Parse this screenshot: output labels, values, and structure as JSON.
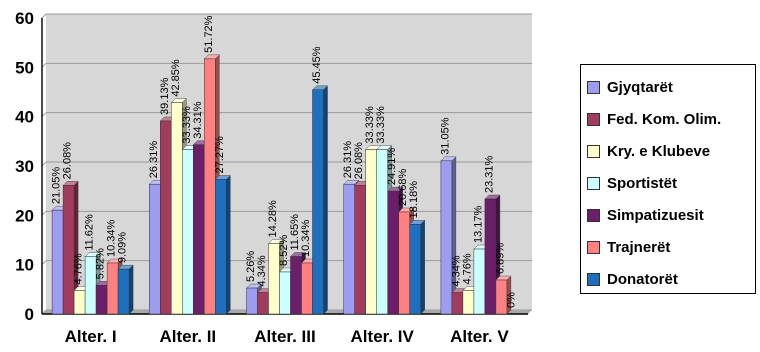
{
  "chart_data": {
    "type": "bar",
    "categories": [
      "Alter. I",
      "Alter. II",
      "Alter. III",
      "Alter. IV",
      "Alter. V"
    ],
    "ylim": [
      0,
      60
    ],
    "yticks": [
      0,
      10,
      20,
      30,
      40,
      50,
      60
    ],
    "grid": true,
    "legend_position": "right",
    "series": [
      {
        "name": "Gjyqtarët",
        "color": "#9c9cf0",
        "values": [
          21.05,
          26.31,
          5.26,
          26.31,
          31.05
        ],
        "labels": [
          "21.05%",
          "26.31%",
          "5.26%",
          "26.31%",
          "31.05%"
        ]
      },
      {
        "name": "Fed. Kom. Olim.",
        "color": "#a23c5e",
        "values": [
          26.08,
          39.13,
          4.34,
          26.08,
          4.34
        ],
        "labels": [
          "26.08%",
          "39.13%",
          "4.34%",
          "26.08%",
          "4.34%"
        ]
      },
      {
        "name": "Kry. e Klubeve",
        "color": "#ffffcc",
        "values": [
          4.76,
          42.85,
          14.28,
          33.33,
          4.76
        ],
        "labels": [
          "4.76%",
          "42.85%",
          "14.28%",
          "33.33%",
          "4.76%"
        ]
      },
      {
        "name": "Sportistët",
        "color": "#ccffff",
        "values": [
          11.62,
          33.33,
          8.52,
          33.33,
          13.17
        ],
        "labels": [
          "11.62%",
          "33.33%",
          "8.52%",
          "33.33%",
          "13.17%"
        ]
      },
      {
        "name": "Simpatizuesit",
        "color": "#6b1f6b",
        "values": [
          5.82,
          34.31,
          11.65,
          24.91,
          23.31
        ],
        "labels": [
          "5.82%",
          "34.31%",
          "11.65%",
          "24.91%",
          "23.31%"
        ]
      },
      {
        "name": "Trajnerët",
        "color": "#ff8080",
        "values": [
          10.34,
          51.72,
          10.34,
          20.68,
          6.89
        ],
        "labels": [
          "10.34%",
          "51.72%",
          "10.34%",
          "20.68%",
          "6.89%"
        ]
      },
      {
        "name": "Donatorët",
        "color": "#1f6fbf",
        "values": [
          9.09,
          27.27,
          45.45,
          18.18,
          0
        ],
        "labels": [
          "9.09%",
          "27.27%",
          "45.45%",
          "18.18%",
          "0%"
        ]
      }
    ]
  }
}
